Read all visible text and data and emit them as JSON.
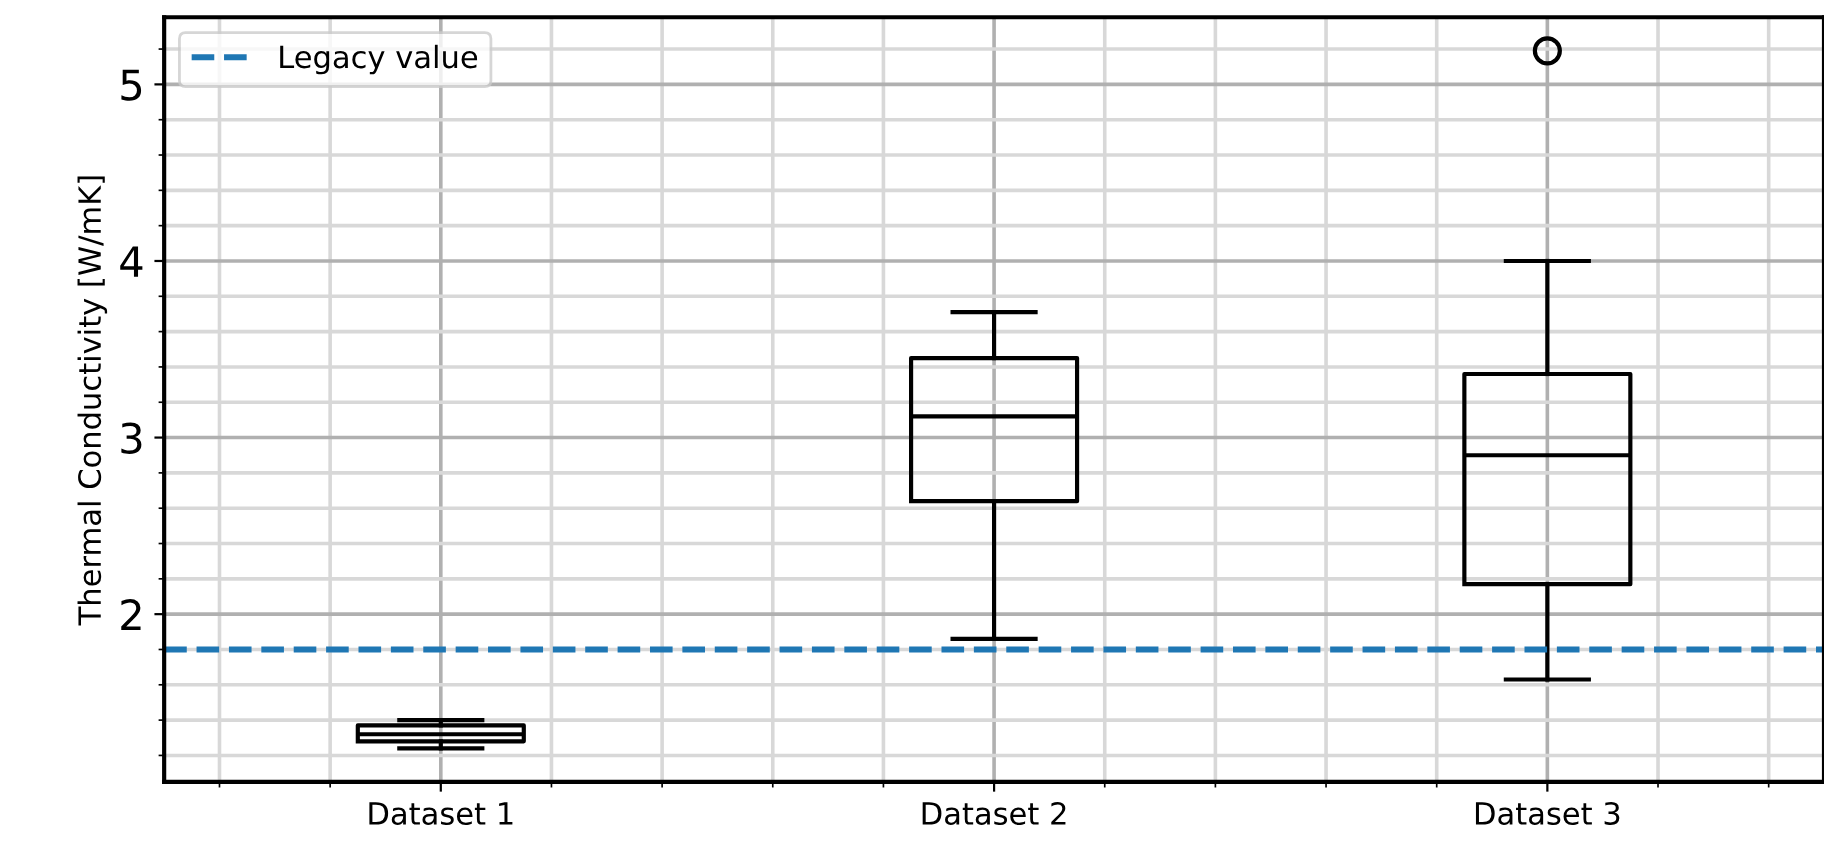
{
  "chart_data": {
    "type": "box",
    "ylabel": "Thermal Conductivity [W/mK]",
    "categories": [
      "Dataset 1",
      "Dataset 2",
      "Dataset 3"
    ],
    "boxes": [
      {
        "low": 1.24,
        "q1": 1.28,
        "median": 1.32,
        "q3": 1.37,
        "high": 1.4
      },
      {
        "low": 1.86,
        "q1": 2.64,
        "median": 3.12,
        "q3": 3.45,
        "high": 3.71
      },
      {
        "low": 1.63,
        "q1": 2.17,
        "median": 2.9,
        "q3": 3.36,
        "high": 4.0,
        "outliers": [
          5.19
        ]
      }
    ],
    "ylim": [
      1.05,
      5.38
    ],
    "yticks": [
      2,
      3,
      4,
      5
    ],
    "ref_lines": [
      {
        "axis": "y",
        "value": 1.8,
        "label": "Legacy value",
        "color": "#1f77b4",
        "line_style": "dashed"
      }
    ],
    "grid": true,
    "legend": "top left"
  }
}
